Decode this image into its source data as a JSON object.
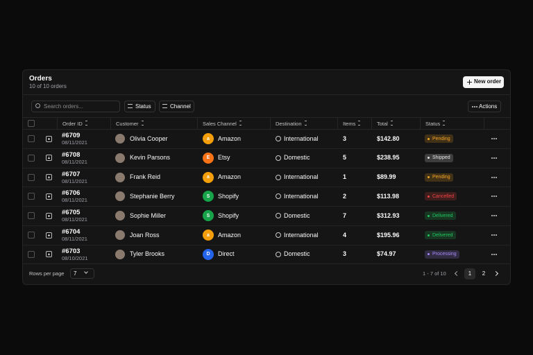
{
  "header": {
    "title": "Orders",
    "subtitle": "10 of 10 orders",
    "new_order": "New order"
  },
  "toolbar": {
    "search_placeholder": "Search orders...",
    "filters": [
      "Status",
      "Channel"
    ],
    "actions": "Actions"
  },
  "table": {
    "columns": [
      "Order ID",
      "Customer",
      "Sales Channel",
      "Destination",
      "Items",
      "Total",
      "Status"
    ],
    "rows": [
      {
        "id": "#6709",
        "date": "08/11/2021",
        "customer": "Olivia Cooper",
        "channel_icon": "a",
        "channel": "Amazon",
        "channel_color": "#f59e0b",
        "destination": "International",
        "items": 3,
        "total": "$142.80",
        "status": "Pending",
        "status_color": "#f5a524"
      },
      {
        "id": "#6708",
        "date": "08/11/2021",
        "customer": "Kevin Parsons",
        "channel_icon": "E",
        "channel": "Etsy",
        "channel_color": "#f97316",
        "destination": "Domestic",
        "items": 5,
        "total": "$238.95",
        "status": "Shipped",
        "status_color": "#e4e4e7"
      },
      {
        "id": "#6707",
        "date": "08/11/2021",
        "customer": "Frank Reid",
        "channel_icon": "a",
        "channel": "Amazon",
        "channel_color": "#f59e0b",
        "destination": "International",
        "items": 1,
        "total": "$89.99",
        "status": "Pending",
        "status_color": "#f5a524"
      },
      {
        "id": "#6706",
        "date": "08/11/2021",
        "customer": "Stephanie Berry",
        "channel_icon": "S",
        "channel": "Shopify",
        "channel_color": "#16a34a",
        "destination": "International",
        "items": 2,
        "total": "$113.98",
        "status": "Cancelled",
        "status_color": "#ef4444"
      },
      {
        "id": "#6705",
        "date": "08/11/2021",
        "customer": "Sophie Miller",
        "channel_icon": "S",
        "channel": "Shopify",
        "channel_color": "#16a34a",
        "destination": "Domestic",
        "items": 7,
        "total": "$312.93",
        "status": "Delivered",
        "status_color": "#22c55e"
      },
      {
        "id": "#6704",
        "date": "08/11/2021",
        "customer": "Joan Ross",
        "channel_icon": "a",
        "channel": "Amazon",
        "channel_color": "#f59e0b",
        "destination": "International",
        "items": 4,
        "total": "$195.96",
        "status": "Delivered",
        "status_color": "#22c55e"
      },
      {
        "id": "#6703",
        "date": "08/10/2021",
        "customer": "Tyler Brooks",
        "channel_icon": "D",
        "channel": "Direct",
        "channel_color": "#2563eb",
        "destination": "Domestic",
        "items": 3,
        "total": "$74.97",
        "status": "Processing",
        "status_color": "#a78bfa"
      }
    ]
  },
  "footer": {
    "rows_per_page_label": "Rows per page",
    "rows_per_page": "7",
    "range": "1 - 7 of 10",
    "pages": [
      "1",
      "2"
    ]
  }
}
